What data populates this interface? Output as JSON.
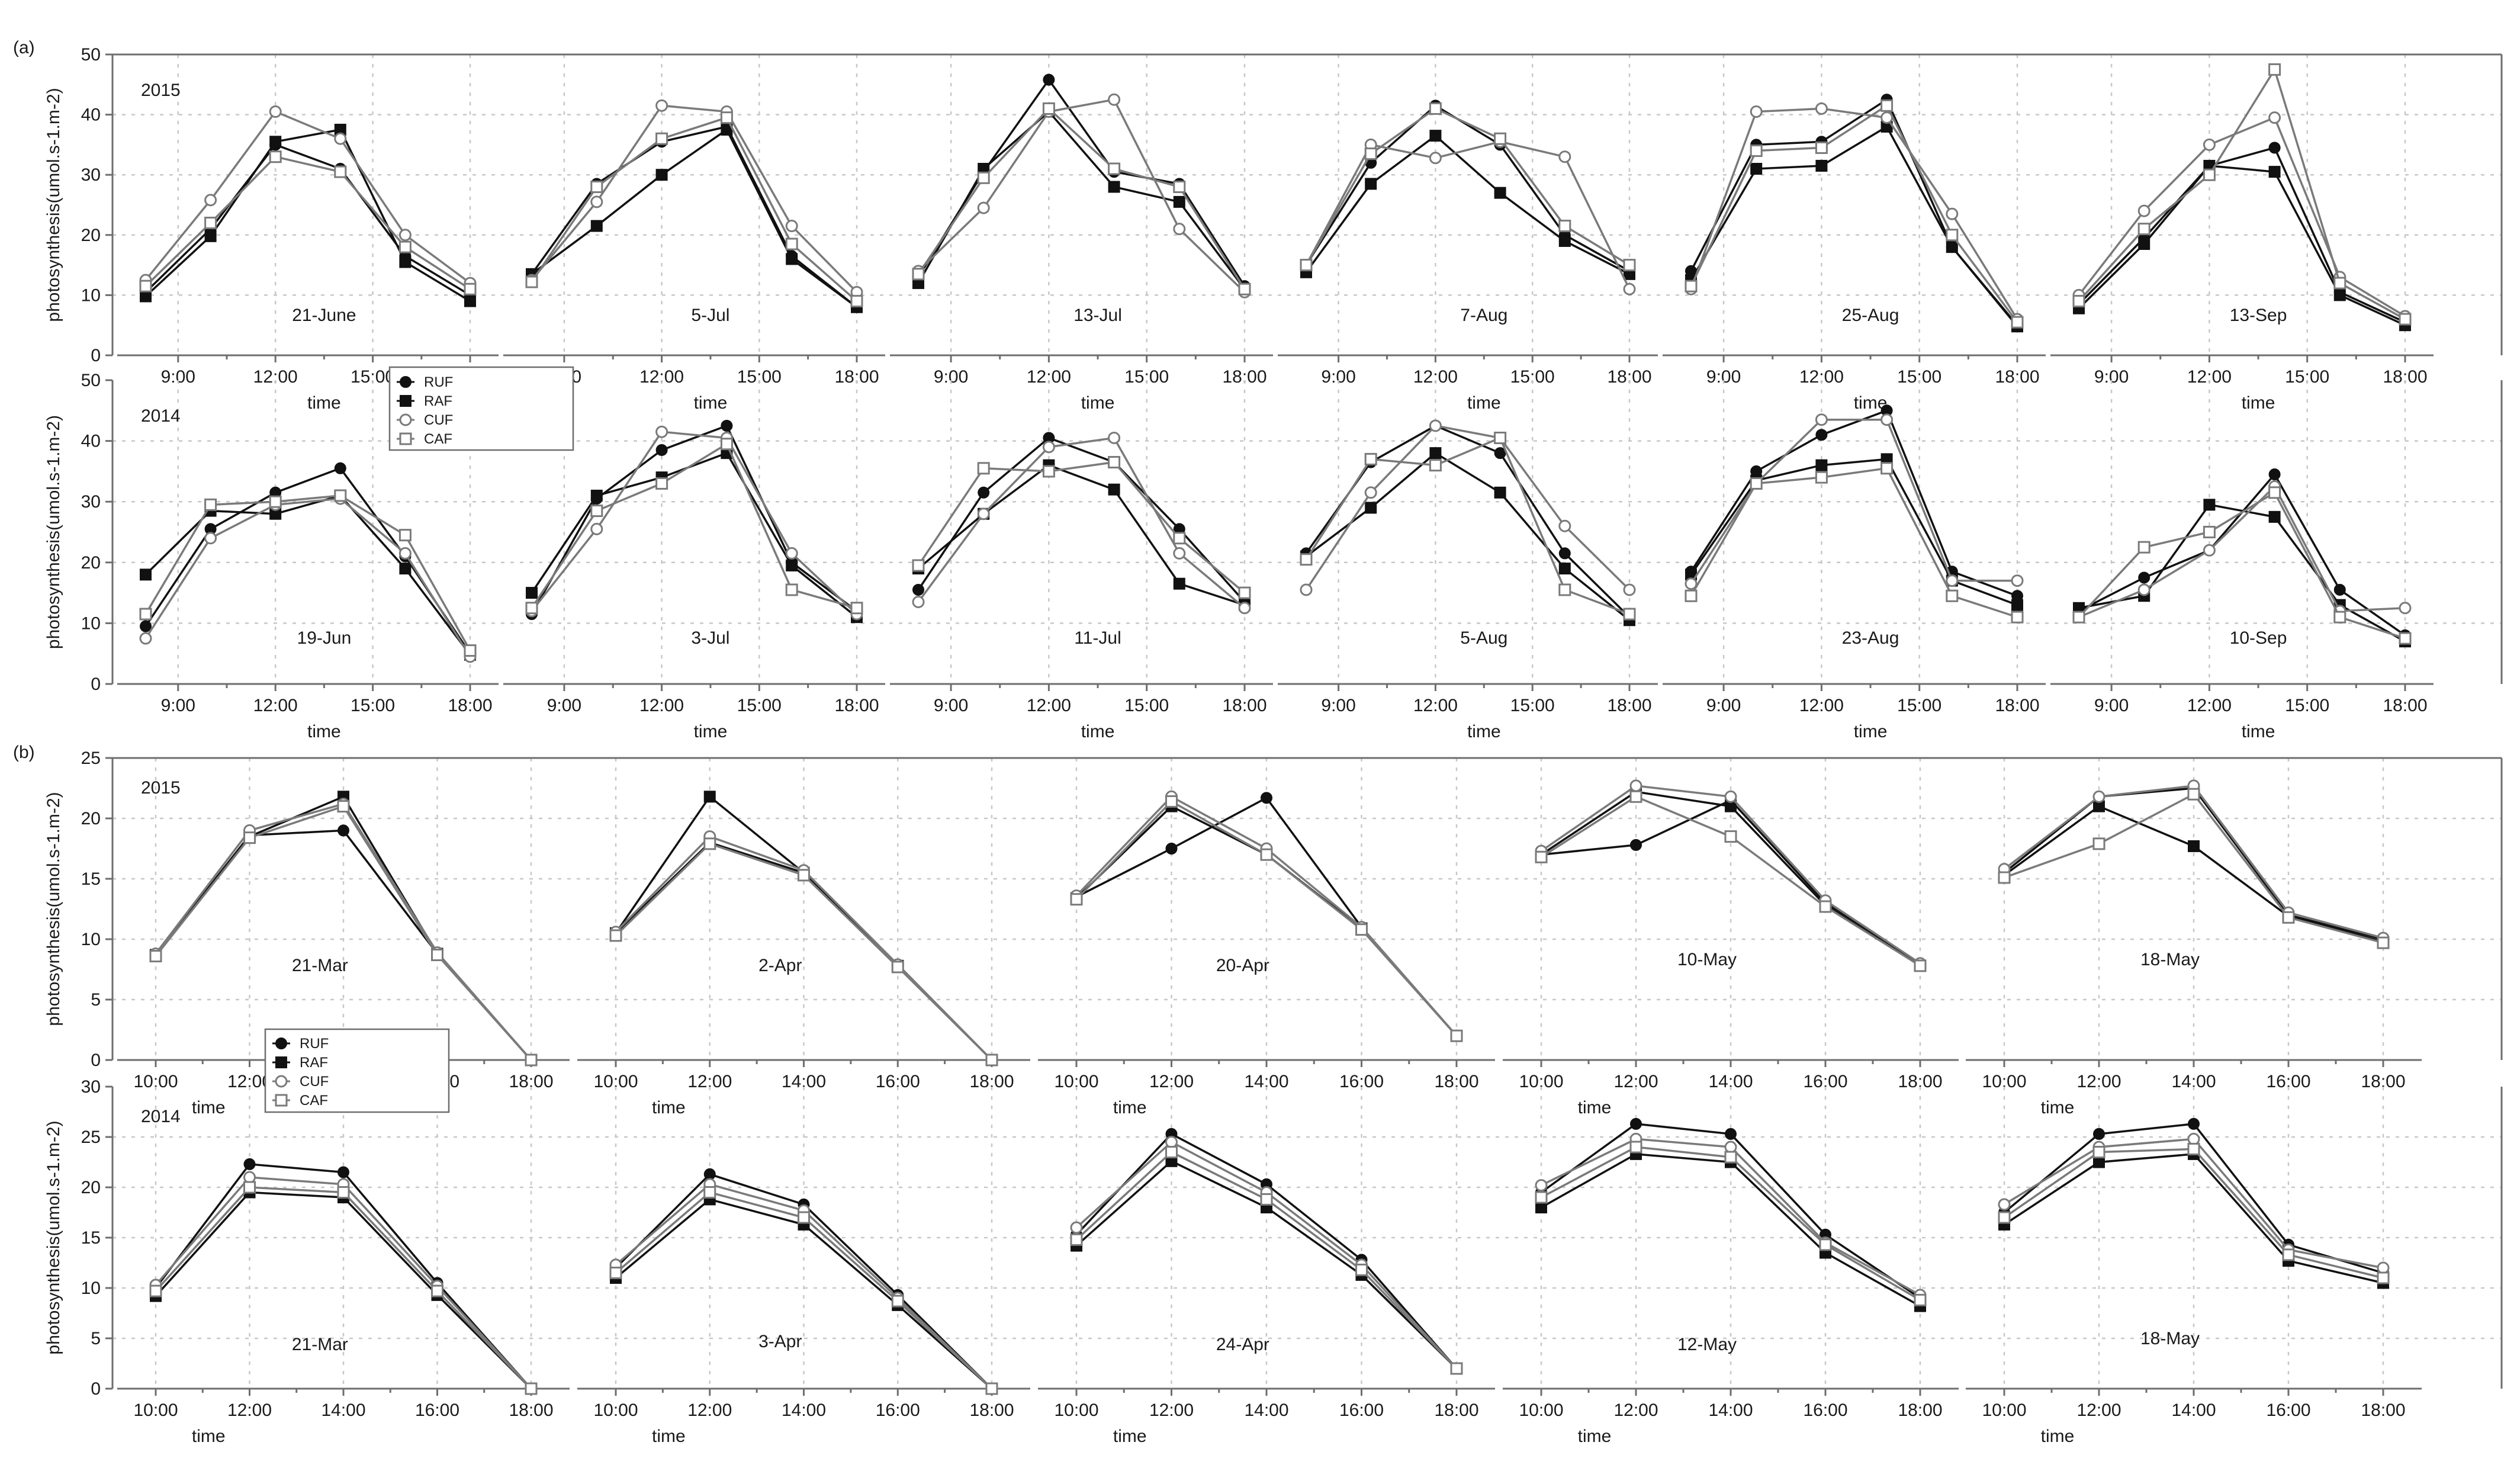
{
  "chart_data": [
    {
      "panel": "(a)",
      "type": "line",
      "ylabel": "photosynthesis(umol.s-1.m-2)",
      "xlabel": "time",
      "ylim": [
        0,
        50
      ],
      "yticks": [
        "0",
        "10",
        "20",
        "30",
        "40",
        "50"
      ],
      "xticks": [
        "9:00",
        "12:00",
        "15:00",
        "18:00"
      ],
      "x_hours": [
        8,
        10,
        12,
        14,
        16,
        18
      ],
      "legend": [
        "RUF",
        "RAF",
        "CUF",
        "CAF"
      ],
      "legend_placement": "inside second panel of 2014 row",
      "grid": true,
      "rows": [
        {
          "year": "2015",
          "panels": [
            {
              "date": "21-June",
              "series": {
                "RUF": [
                  10.5,
                  21,
                  35,
                  31,
                  16.5,
                  10
                ],
                "RAF": [
                  9.8,
                  19.8,
                  35.5,
                  37.5,
                  15.5,
                  9
                ],
                "CUF": [
                  12.5,
                  25.8,
                  40.5,
                  36,
                  20,
                  12
                ],
                "CAF": [
                  11.5,
                  22,
                  33,
                  30.5,
                  18,
                  11
                ]
              }
            },
            {
              "date": "5-Jul",
              "series": {
                "RUF": [
                  13.5,
                  28.5,
                  35.5,
                  38,
                  16.5,
                  8
                ],
                "RAF": [
                  13.5,
                  21.5,
                  30,
                  37.5,
                  16,
                  8
                ],
                "CUF": [
                  12.5,
                  25.5,
                  41.5,
                  40.5,
                  21.5,
                  10.5
                ],
                "CAF": [
                  12.2,
                  28,
                  36,
                  39.5,
                  18.5,
                  9
                ]
              }
            },
            {
              "date": "13-Jul",
              "series": {
                "RUF": [
                  13,
                  30.5,
                  45.8,
                  30.5,
                  28.5,
                  11.5
                ],
                "RAF": [
                  12,
                  31,
                  40.5,
                  28,
                  25.5,
                  11
                ],
                "CUF": [
                  14,
                  24.5,
                  40.5,
                  42.5,
                  21,
                  10.5
                ],
                "CAF": [
                  13.5,
                  29.5,
                  41,
                  31,
                  28,
                  11
                ]
              }
            },
            {
              "date": "7-Aug",
              "series": {
                "RUF": [
                  15,
                  32,
                  41.5,
                  35,
                  20,
                  14
                ],
                "RAF": [
                  13.8,
                  28.5,
                  36.5,
                  27,
                  19,
                  13.5
                ],
                "CUF": [
                  15,
                  35,
                  32.8,
                  35.5,
                  33,
                  11
                ],
                "CAF": [
                  15,
                  33.5,
                  41,
                  36,
                  21.5,
                  15
                ]
              }
            },
            {
              "date": "25-Aug",
              "series": {
                "RUF": [
                  14,
                  35,
                  35.5,
                  42.5,
                  18,
                  5
                ],
                "RAF": [
                  12.5,
                  31,
                  31.5,
                  38,
                  18,
                  4.8
                ],
                "CUF": [
                  11,
                  40.5,
                  41,
                  39.5,
                  23.5,
                  6
                ],
                "CAF": [
                  11.5,
                  34,
                  34.5,
                  41.5,
                  20,
                  5.5
                ]
              }
            },
            {
              "date": "13-Sep",
              "series": {
                "RUF": [
                  8.5,
                  19.5,
                  31.5,
                  34.5,
                  10.5,
                  5.5
                ],
                "RAF": [
                  7.8,
                  18.5,
                  31.5,
                  30.5,
                  10,
                  5
                ],
                "CUF": [
                  10,
                  24,
                  35,
                  39.5,
                  13,
                  6.5
                ],
                "CAF": [
                  9,
                  21,
                  30,
                  47.5,
                  12,
                  6
                ]
              }
            }
          ]
        },
        {
          "year": "2014",
          "panels": [
            {
              "date": "19-Jun",
              "series": {
                "RUF": [
                  9.5,
                  25.5,
                  31.5,
                  35.5,
                  21,
                  5
                ],
                "RAF": [
                  18,
                  28.5,
                  28,
                  31,
                  19,
                  4.8
                ],
                "CUF": [
                  7.5,
                  24,
                  29.5,
                  30.5,
                  21.5,
                  4.5
                ],
                "CAF": [
                  11.5,
                  29.5,
                  30,
                  31,
                  24.5,
                  5.5
                ]
              }
            },
            {
              "date": "3-Jul",
              "series": {
                "RUF": [
                  11.5,
                  30.5,
                  38.5,
                  42.5,
                  20,
                  12
                ],
                "RAF": [
                  15,
                  31,
                  34,
                  38,
                  19.5,
                  11
                ],
                "CUF": [
                  12,
                  25.5,
                  41.5,
                  40.5,
                  21.5,
                  11.5
                ],
                "CAF": [
                  12.5,
                  28.5,
                  33,
                  39.5,
                  15.5,
                  12.5
                ]
              }
            },
            {
              "date": "11-Jul",
              "series": {
                "RUF": [
                  15.5,
                  31.5,
                  40.5,
                  36.5,
                  25.5,
                  13.5
                ],
                "RAF": [
                  19,
                  28,
                  36,
                  32,
                  16.5,
                  13
                ],
                "CUF": [
                  13.5,
                  28,
                  39,
                  40.5,
                  21.5,
                  12.5
                ],
                "CAF": [
                  19.5,
                  35.5,
                  35,
                  36.5,
                  24,
                  15
                ]
              }
            },
            {
              "date": "5-Aug",
              "series": {
                "RUF": [
                  21.5,
                  36.5,
                  42.5,
                  38,
                  21.5,
                  11
                ],
                "RAF": [
                  21,
                  29,
                  38,
                  31.5,
                  19,
                  10.5
                ],
                "CUF": [
                  15.5,
                  31.5,
                  42.5,
                  40.5,
                  26,
                  15.5
                ],
                "CAF": [
                  20.5,
                  37,
                  36,
                  40.5,
                  15.5,
                  11.5
                ]
              }
            },
            {
              "date": "23-Aug",
              "series": {
                "RUF": [
                  18.5,
                  35,
                  41,
                  45,
                  18.5,
                  14.5
                ],
                "RAF": [
                  18,
                  33.5,
                  36,
                  37,
                  17,
                  13
                ],
                "CUF": [
                  16.5,
                  33,
                  43.5,
                  43.5,
                  17,
                  17
                ],
                "CAF": [
                  14.5,
                  33,
                  34,
                  35.5,
                  14.5,
                  11
                ]
              }
            },
            {
              "date": "10-Sep",
              "series": {
                "RUF": [
                  12,
                  17.5,
                  22,
                  34.5,
                  15.5,
                  8
                ],
                "RAF": [
                  12.5,
                  14.5,
                  29.5,
                  27.5,
                  13,
                  7
                ],
                "CUF": [
                  11,
                  15.5,
                  22,
                  32.5,
                  12,
                  12.5
                ],
                "CAF": [
                  11,
                  22.5,
                  25,
                  31.5,
                  11,
                  7.5
                ]
              }
            }
          ]
        }
      ]
    },
    {
      "panel": "(b)",
      "type": "line",
      "ylabel": "photosynthesis(umol.s-1.m-2)",
      "xlabel": "time",
      "yticks_2015": [
        "0",
        "5",
        "10",
        "15",
        "20",
        "25"
      ],
      "yticks_2014": [
        "0",
        "5",
        "10",
        "15",
        "20",
        "25",
        "30"
      ],
      "ylim_2015": [
        0,
        25
      ],
      "ylim_2014": [
        0,
        30
      ],
      "xticks": [
        "10:00",
        "12:00",
        "14:00",
        "16:00",
        "18:00"
      ],
      "x_hours": [
        10,
        12,
        14,
        16,
        18
      ],
      "legend": [
        "RUF",
        "RAF",
        "CUF",
        "CAF"
      ],
      "legend_placement": "lower-left of first 2015 panel",
      "grid": true,
      "rows": [
        {
          "year": "2015",
          "panels": [
            {
              "date": "21-Mar",
              "series": {
                "RUF": [
                  8.7,
                  18.6,
                  19,
                  8.8,
                  0
                ],
                "RAF": [
                  8.7,
                  18.5,
                  21.8,
                  8.8,
                  0
                ],
                "CUF": [
                  8.8,
                  19,
                  21.2,
                  8.9,
                  0
                ],
                "CAF": [
                  8.6,
                  18.4,
                  21,
                  8.7,
                  0
                ]
              }
            },
            {
              "date": "2-Apr",
              "series": {
                "RUF": [
                  10.5,
                  18,
                  15.5,
                  7.8,
                  0
                ],
                "RAF": [
                  10.5,
                  21.8,
                  15.5,
                  7.8,
                  0
                ],
                "CUF": [
                  10.6,
                  18.5,
                  15.7,
                  7.9,
                  0
                ],
                "CAF": [
                  10.3,
                  17.9,
                  15.3,
                  7.7,
                  0
                ]
              }
            },
            {
              "date": "20-Apr",
              "series": {
                "RUF": [
                  13.5,
                  17.5,
                  21.7,
                  11,
                  2
                ],
                "RAF": [
                  13.4,
                  21,
                  17,
                  10.9,
                  2
                ],
                "CUF": [
                  13.6,
                  21.8,
                  17.5,
                  11,
                  2
                ],
                "CAF": [
                  13.3,
                  21.4,
                  17,
                  10.8,
                  2
                ]
              }
            },
            {
              "date": "10-May",
              "series": {
                "RUF": [
                  17,
                  17.8,
                  21.5,
                  13,
                  8
                ],
                "RAF": [
                  17,
                  22.2,
                  21,
                  12.8,
                  7.8
                ],
                "CUF": [
                  17.3,
                  22.7,
                  21.8,
                  13.2,
                  8
                ],
                "CAF": [
                  16.8,
                  21.8,
                  18.5,
                  12.7,
                  7.8
                ]
              }
            },
            {
              "date": "18-May",
              "series": {
                "RUF": [
                  15.5,
                  21.8,
                  22.5,
                  12,
                  10
                ],
                "RAF": [
                  15.3,
                  21,
                  17.7,
                  11.9,
                  9.8
                ],
                "CUF": [
                  15.8,
                  21.8,
                  22.7,
                  12.2,
                  10.1
                ],
                "CAF": [
                  15.1,
                  17.9,
                  22,
                  11.8,
                  9.7
                ]
              }
            }
          ]
        },
        {
          "year": "2014",
          "panels": [
            {
              "date": "21-Mar",
              "series": {
                "RUF": [
                  10,
                  22.3,
                  21.5,
                  10.5,
                  0
                ],
                "RAF": [
                  9.2,
                  19.5,
                  19,
                  9.3,
                  0
                ],
                "CUF": [
                  10.3,
                  21,
                  20.3,
                  10.2,
                  0
                ],
                "CAF": [
                  9.7,
                  20,
                  19.5,
                  9.7,
                  0
                ]
              }
            },
            {
              "date": "3-Apr",
              "series": {
                "RUF": [
                  12,
                  21.3,
                  18.3,
                  9.3,
                  0
                ],
                "RAF": [
                  11,
                  18.8,
                  16.3,
                  8.3,
                  0
                ],
                "CUF": [
                  12.3,
                  20.3,
                  17.7,
                  9,
                  0
                ],
                "CAF": [
                  11.5,
                  19.5,
                  17,
                  8.7,
                  0
                ]
              }
            },
            {
              "date": "24-Apr",
              "series": {
                "RUF": [
                  15.3,
                  25.3,
                  20.3,
                  12.8,
                  2
                ],
                "RAF": [
                  14.2,
                  22.6,
                  18,
                  11.3,
                  2
                ],
                "CUF": [
                  16,
                  24.5,
                  19.5,
                  12.3,
                  2
                ],
                "CAF": [
                  14.8,
                  23.5,
                  18.8,
                  11.8,
                  2
                ]
              }
            },
            {
              "date": "12-May",
              "series": {
                "RUF": [
                  19.5,
                  26.3,
                  25.3,
                  15.3,
                  9
                ],
                "RAF": [
                  18,
                  23.3,
                  22.5,
                  13.5,
                  8.2
                ],
                "CUF": [
                  20.2,
                  24.8,
                  24,
                  14.5,
                  9.3
                ],
                "CAF": [
                  19,
                  24,
                  23,
                  14.3,
                  8.8
                ]
              }
            },
            {
              "date": "18-May",
              "series": {
                "RUF": [
                  17.5,
                  25.3,
                  26.3,
                  14.3,
                  11.5
                ],
                "RAF": [
                  16.3,
                  22.5,
                  23.3,
                  12.7,
                  10.5
                ],
                "CUF": [
                  18.3,
                  24,
                  24.8,
                  13.8,
                  12
                ],
                "CAF": [
                  17,
                  23.5,
                  23.8,
                  13.3,
                  11
                ]
              }
            }
          ]
        }
      ]
    }
  ],
  "style": {
    "series_colors": {
      "RUF": "#111111",
      "RAF": "#111111",
      "CUF": "#7a7a7a",
      "CAF": "#7a7a7a"
    },
    "series_markers": {
      "RUF": "filled-circle",
      "RAF": "filled-square",
      "CUF": "open-circle",
      "CAF": "open-square"
    }
  }
}
